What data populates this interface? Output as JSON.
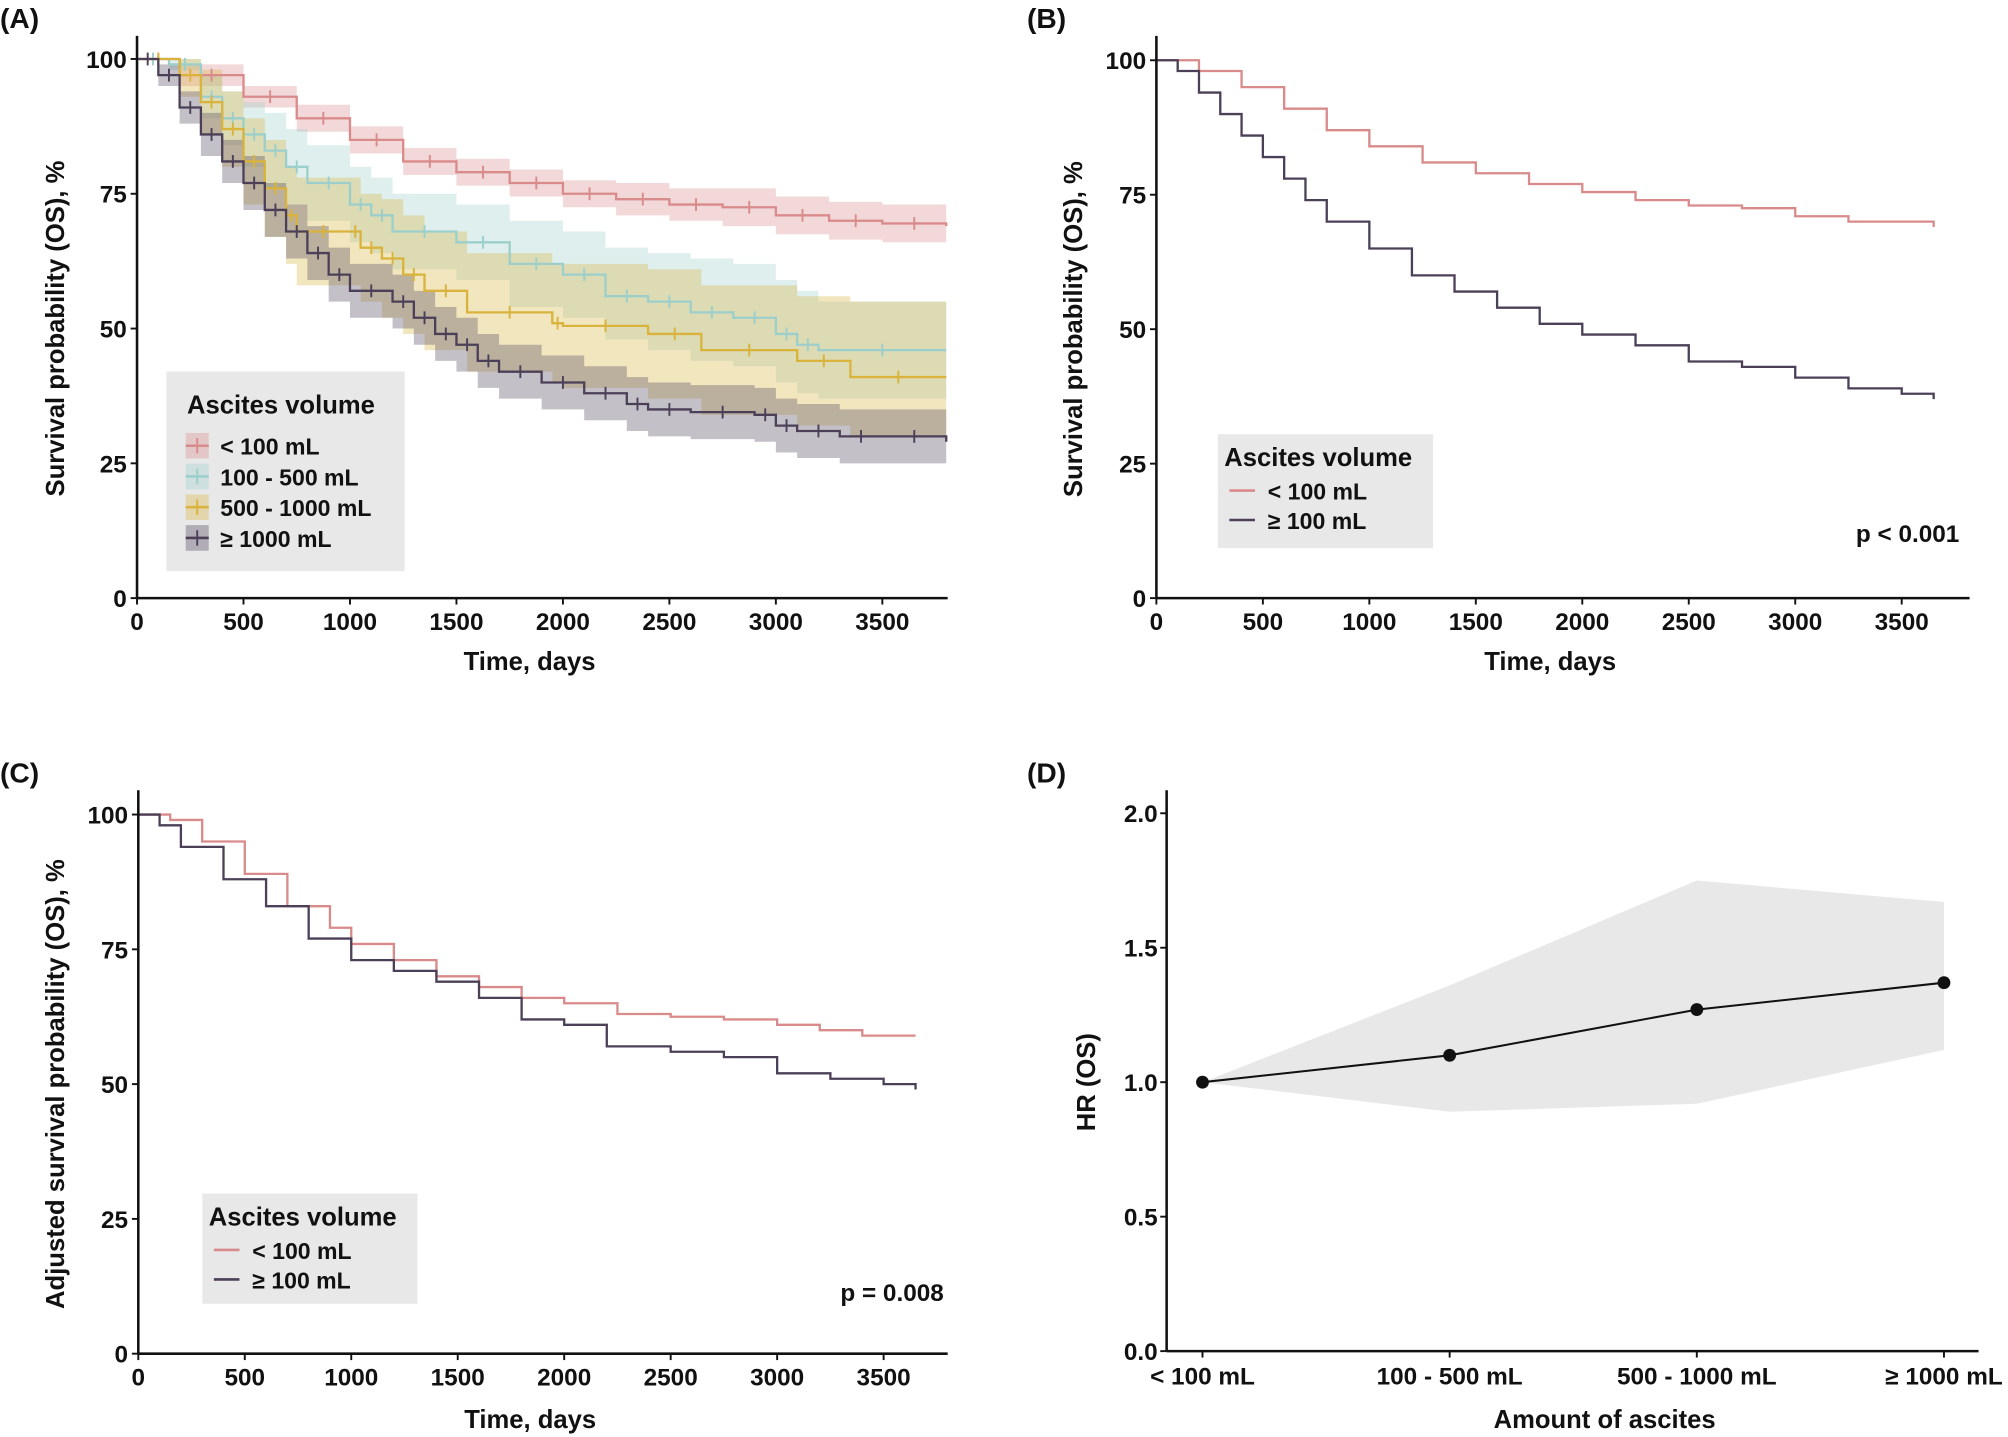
{
  "colors": {
    "lt100": "#d98a8a",
    "r100_500": "#9ccfcb",
    "r500_1000": "#d9b33c",
    "ge1000": "#4b4058",
    "band_grey": "#e8e8e8",
    "line": "#111111"
  },
  "chart_data": [
    {
      "panel_label": "(A)",
      "type": "line",
      "subtype": "kaplan-meier",
      "xlabel": "Time, days",
      "ylabel": "Survival probability (OS), %",
      "xlim": [
        0,
        3800
      ],
      "ylim": [
        0,
        100
      ],
      "xticks": [
        "0",
        "500",
        "1000",
        "1500",
        "2000",
        "2500",
        "3000",
        "3500"
      ],
      "yticks": [
        "0",
        "25",
        "50",
        "75",
        "100"
      ],
      "legend": {
        "title": "Ascites volume",
        "placement": "bottom-left"
      },
      "series": [
        {
          "name": "< 100 mL",
          "color_key": "lt100",
          "x": [
            0,
            200,
            500,
            750,
            1000,
            1250,
            1500,
            1750,
            2000,
            2250,
            2500,
            2750,
            3000,
            3250,
            3500,
            3800
          ],
          "y": [
            100,
            97,
            93,
            89,
            85,
            81,
            79,
            77,
            75,
            74,
            73,
            72.5,
            71,
            70,
            69.5,
            69
          ],
          "lower": [
            100,
            95,
            91,
            86.5,
            82.5,
            78.5,
            76.5,
            74.5,
            72.5,
            71,
            70,
            69,
            67.5,
            66.5,
            66,
            65.5
          ],
          "upper": [
            100,
            99,
            95,
            91.5,
            87.5,
            83.5,
            81.5,
            79.5,
            77.5,
            77,
            76,
            76,
            74.5,
            73.5,
            73,
            72.5
          ]
        },
        {
          "name": "100 - 500 mL",
          "color_key": "r100_500",
          "x": [
            0,
            150,
            300,
            400,
            500,
            600,
            700,
            800,
            1000,
            1100,
            1200,
            1500,
            1750,
            2000,
            2200,
            2400,
            2600,
            2800,
            3000,
            3100,
            3200,
            3800
          ],
          "y": [
            100,
            99,
            93,
            89,
            86,
            83,
            80,
            77,
            73,
            71,
            68,
            66,
            62,
            60,
            56,
            55,
            53,
            52,
            49,
            47,
            46,
            46
          ],
          "lower": [
            100,
            98,
            89,
            84,
            80,
            76,
            73,
            70,
            66,
            64,
            61,
            59,
            54,
            52,
            48,
            46,
            44,
            43,
            40,
            38,
            37,
            37
          ],
          "upper": [
            100,
            100,
            97,
            94,
            92,
            90,
            87,
            84,
            80,
            78,
            75,
            73,
            70,
            68,
            65,
            64,
            63,
            62,
            59,
            57,
            55,
            55
          ]
        },
        {
          "name": "500 - 1000 mL",
          "color_key": "r500_1000",
          "x": [
            0,
            200,
            300,
            400,
            500,
            600,
            700,
            750,
            1000,
            1050,
            1150,
            1250,
            1350,
            1550,
            1950,
            2000,
            2400,
            2650,
            3100,
            3350,
            3800
          ],
          "y": [
            100,
            97,
            92,
            87,
            81,
            76,
            71,
            68,
            68,
            65,
            63,
            60,
            57,
            53,
            51,
            50.5,
            49,
            46,
            44,
            41,
            41
          ],
          "lower": [
            100,
            93,
            86,
            80,
            73,
            67,
            62,
            58,
            58,
            55,
            52,
            49,
            46,
            42,
            40,
            39,
            37,
            34,
            32,
            30,
            30
          ],
          "upper": [
            100,
            100,
            98,
            94,
            89,
            85,
            80,
            78,
            78,
            75,
            74,
            71,
            68,
            64,
            62,
            62,
            61,
            58,
            56,
            55,
            55
          ]
        },
        {
          "name": "≥ 1000 mL",
          "color_key": "ge1000",
          "x": [
            0,
            100,
            200,
            300,
            400,
            500,
            600,
            700,
            800,
            900,
            1000,
            1200,
            1300,
            1400,
            1500,
            1600,
            1700,
            1900,
            2100,
            2300,
            2400,
            2600,
            2900,
            3000,
            3100,
            3300,
            3500,
            3800
          ],
          "y": [
            100,
            97,
            91,
            86,
            81,
            77,
            72,
            68,
            64,
            60,
            57,
            55,
            52,
            49,
            47,
            44,
            42,
            40,
            38,
            36,
            35,
            34.5,
            34,
            32,
            31,
            30,
            30,
            29
          ],
          "lower": [
            100,
            95,
            88,
            82,
            77,
            72,
            67,
            63,
            59,
            55,
            52,
            50,
            47,
            44,
            42,
            39,
            37,
            35,
            33,
            31,
            30,
            29.5,
            29,
            27,
            26,
            25,
            25,
            24
          ],
          "upper": [
            100,
            99,
            94,
            90,
            85,
            82,
            77,
            73,
            69,
            65,
            62,
            60,
            57,
            54,
            52,
            49,
            47,
            45,
            43,
            41,
            40,
            39.5,
            39,
            37,
            36,
            35,
            35,
            34
          ]
        }
      ]
    },
    {
      "panel_label": "(B)",
      "type": "line",
      "subtype": "kaplan-meier",
      "xlabel": "Time, days",
      "ylabel": "Survival probability (OS), %",
      "xlim": [
        0,
        3800
      ],
      "ylim": [
        0,
        100
      ],
      "xticks": [
        "0",
        "500",
        "1000",
        "1500",
        "2000",
        "2500",
        "3000",
        "3500"
      ],
      "yticks": [
        "0",
        "25",
        "50",
        "75",
        "100"
      ],
      "legend": {
        "title": "Ascites volume",
        "placement": "bottom-left"
      },
      "annotation": "p < 0.001",
      "series": [
        {
          "name": "< 100 mL",
          "color_key": "lt100",
          "x": [
            0,
            200,
            400,
            600,
            800,
            1000,
            1250,
            1500,
            1750,
            2000,
            2250,
            2500,
            2750,
            3000,
            3250,
            3650
          ],
          "y": [
            100,
            98,
            95,
            91,
            87,
            84,
            81,
            79,
            77,
            75.5,
            74,
            73,
            72.5,
            71,
            70,
            69
          ]
        },
        {
          "name": "≥ 100 mL",
          "color_key": "ge1000",
          "x": [
            0,
            100,
            200,
            300,
            400,
            500,
            600,
            700,
            800,
            1000,
            1200,
            1400,
            1600,
            1800,
            2000,
            2250,
            2500,
            2750,
            3000,
            3250,
            3500,
            3650
          ],
          "y": [
            100,
            98,
            94,
            90,
            86,
            82,
            78,
            74,
            70,
            65,
            60,
            57,
            54,
            51,
            49,
            47,
            44,
            43,
            41,
            39,
            38,
            37
          ]
        }
      ]
    },
    {
      "panel_label": "(C)",
      "type": "line",
      "subtype": "kaplan-meier",
      "xlabel": "Time, days",
      "ylabel": "Adjusted survival probability (OS), %",
      "xlim": [
        0,
        3800
      ],
      "ylim": [
        0,
        100
      ],
      "xticks": [
        "0",
        "500",
        "1000",
        "1500",
        "2000",
        "2500",
        "3000",
        "3500"
      ],
      "yticks": [
        "0",
        "25",
        "50",
        "75",
        "100"
      ],
      "legend": {
        "title": "Ascites volume",
        "placement": "bottom-left"
      },
      "annotation": "p = 0.008",
      "series": [
        {
          "name": "< 100 mL",
          "color_key": "lt100",
          "x": [
            0,
            150,
            300,
            500,
            700,
            900,
            1000,
            1200,
            1400,
            1600,
            1800,
            2000,
            2250,
            2500,
            2750,
            3000,
            3200,
            3400,
            3650
          ],
          "y": [
            100,
            99,
            95,
            89,
            83,
            79,
            76,
            73,
            70,
            68,
            66,
            65,
            63,
            62.5,
            62,
            61,
            60,
            59,
            59
          ]
        },
        {
          "name": "≥ 100 mL",
          "color_key": "ge1000",
          "x": [
            0,
            100,
            200,
            400,
            600,
            800,
            1000,
            1200,
            1400,
            1600,
            1800,
            2000,
            2200,
            2500,
            2750,
            3000,
            3250,
            3500,
            3650
          ],
          "y": [
            100,
            98,
            94,
            88,
            83,
            77,
            73,
            71,
            69,
            66,
            62,
            61,
            57,
            56,
            55,
            52,
            51,
            50,
            49
          ]
        }
      ]
    },
    {
      "panel_label": "(D)",
      "type": "line",
      "xlabel": "Amount of ascites",
      "ylabel": "HR (OS)",
      "ylim": [
        0,
        2.1
      ],
      "yticks": [
        "0.0",
        "0.5",
        "1.0",
        "1.5",
        "2.0"
      ],
      "categories": [
        "< 100 mL",
        "100 - 500 mL",
        "500 - 1000 mL",
        "≥ 1000 mL"
      ],
      "values": [
        1.0,
        1.1,
        1.27,
        1.37
      ],
      "lower": [
        1.0,
        0.89,
        0.92,
        1.12
      ],
      "upper": [
        1.0,
        1.36,
        1.75,
        1.67
      ]
    }
  ]
}
